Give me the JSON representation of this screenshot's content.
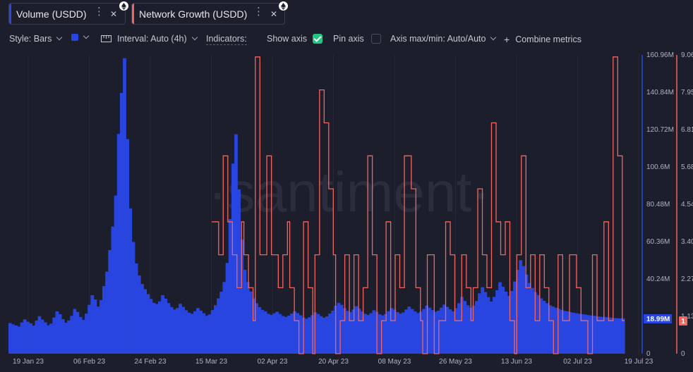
{
  "tabs": [
    {
      "label": "Volume (USDD)",
      "color": "#2846df"
    },
    {
      "label": "Network Growth (USDD)",
      "color": "#f2655e"
    }
  ],
  "toolbar": {
    "style": "Style: Bars",
    "interval": "Interval: Auto (4h)",
    "indicators": "Indicators:",
    "show_axis": "Show axis",
    "pin_axis": "Pin axis",
    "axis_maxmin": "Axis max/min: Auto/Auto",
    "combine": "Combine metrics"
  },
  "watermark": "·santiment·",
  "chart_data": {
    "type": "bar",
    "x_tick_labels": [
      "19 Jan 23",
      "06 Feb 23",
      "24 Feb 23",
      "15 Mar 23",
      "02 Apr 23",
      "20 Apr 23",
      "08 May 23",
      "26 May 23",
      "13 Jun 23",
      "02 Jul 23",
      "19 Jul 23"
    ],
    "y_left_ticks": [
      "160.96M",
      "140.84M",
      "120.72M",
      "100.6M",
      "80.48M",
      "60.36M",
      "40.24M",
      "0"
    ],
    "y_right_ticks": [
      "9.06",
      "7.95",
      "6.81",
      "5.68",
      "4.54",
      "3.40",
      "2.27",
      "1.13",
      "0"
    ],
    "y_left_range": [
      0,
      160960000
    ],
    "y_right_range": [
      0,
      9.06
    ],
    "last_values": {
      "volume": "18.99M",
      "network_growth": "1"
    },
    "series": [
      {
        "name": "Volume (USDD)",
        "color": "#2846df",
        "style": "bars",
        "axis": "left",
        "values_millions": [
          16.5,
          15.8,
          15.2,
          14.6,
          16.8,
          18.5,
          17.2,
          16.4,
          15.1,
          17.8,
          20.2,
          18.4,
          16.9,
          15.3,
          16.2,
          19.5,
          22.8,
          21.3,
          18.6,
          16.7,
          17.9,
          20.4,
          24.1,
          22.5,
          19.8,
          18.2,
          21.6,
          26.3,
          31.5,
          29.2,
          25.4,
          28.9,
          36.4,
          44.2,
          55.8,
          68.5,
          85.2,
          118.4,
          140.5,
          159.2,
          115.6,
          78.3,
          60.2,
          48.6,
          42.1,
          37.5,
          34.8,
          32.1,
          29.5,
          27.4,
          26.8,
          28.2,
          31.5,
          29.6,
          27.3,
          25.1,
          23.8,
          24.6,
          26.9,
          25.2,
          23.4,
          22.1,
          21.5,
          22.9,
          24.6,
          23.2,
          21.8,
          20.4,
          21.2,
          23.5,
          26.1,
          29.8,
          33.4,
          38.6,
          48.9,
          72.5,
          102.4,
          118.2,
          88.5,
          61.4,
          45.2,
          38.6,
          33.5,
          29.8,
          27.2,
          25.1,
          23.6,
          22.8,
          21.5,
          20.9,
          21.7,
          22.6,
          21.4,
          20.3,
          19.8,
          20.5,
          21.6,
          22.8,
          21.9,
          20.7,
          19.5,
          18.8,
          19.6,
          20.8,
          22.3,
          21.4,
          20.2,
          19.4,
          20.1,
          21.6,
          23.2,
          25.8,
          27.4,
          26.3,
          24.5,
          23.1,
          22.4,
          23.8,
          25.6,
          24.2,
          22.8,
          21.5,
          20.9,
          21.8,
          23.4,
          22.5,
          21.2,
          20.6,
          21.4,
          22.9,
          24.6,
          23.8,
          22.4,
          21.6,
          22.2,
          23.8,
          25.4,
          24.1,
          22.8,
          21.9,
          22.6,
          24.1,
          25.9,
          24.8,
          23.5,
          22.6,
          23.2,
          24.8,
          26.5,
          25.2,
          23.9,
          22.8,
          24.5,
          27.2,
          30.6,
          28.4,
          26.1,
          24.8,
          25.9,
          28.4,
          32.5,
          35.8,
          33.2,
          30.5,
          28.1,
          30.6,
          34.2,
          38.5,
          36.1,
          33.4,
          31.2,
          33.8,
          38.9,
          45.2,
          50.4,
          47.2,
          42.6,
          38.1,
          35.4,
          33.2,
          31.6,
          29.8,
          28.5,
          27.2,
          26.1,
          25.4,
          24.8,
          24.2,
          23.6,
          23.1,
          22.8,
          22.4,
          22.1,
          21.8,
          21.5,
          21.3,
          21.1,
          20.8,
          20.6,
          20.4,
          20.2,
          20.0,
          19.8,
          19.7,
          19.5,
          19.4,
          19.2,
          19.1,
          19.0,
          18.99
        ]
      },
      {
        "name": "Network Growth (USDD)",
        "color": "#f2655e",
        "style": "step-line",
        "axis": "right",
        "start_fraction": 0.33,
        "values": [
          4,
          4,
          4,
          3,
          3,
          6,
          6,
          4,
          4,
          3,
          3,
          2,
          2,
          4,
          3,
          3,
          2,
          2,
          1,
          9,
          9,
          3,
          3,
          3,
          6,
          6,
          3,
          3,
          3,
          2,
          2,
          3,
          3,
          4,
          2,
          2,
          1,
          1,
          0,
          0,
          4,
          4,
          2,
          2,
          0,
          3,
          3,
          8,
          8,
          7,
          7,
          5,
          5,
          3,
          0,
          0,
          1,
          1,
          3,
          3,
          1,
          1,
          3,
          3,
          1,
          1,
          2,
          2,
          6,
          6,
          3,
          3,
          0,
          0,
          1,
          1,
          4,
          4,
          1,
          1,
          3,
          3,
          2,
          2,
          6,
          6,
          6,
          5,
          5,
          2,
          2,
          1,
          0,
          0,
          3,
          3,
          3,
          0,
          0,
          1,
          1,
          1,
          4,
          4,
          3,
          3,
          1,
          1,
          1,
          3,
          3,
          2,
          2,
          1,
          2,
          2,
          5,
          5,
          3,
          3,
          2,
          2,
          7,
          7,
          4,
          4,
          3,
          3,
          4,
          4,
          1,
          1,
          0,
          3,
          3,
          6,
          6,
          2,
          2,
          3,
          3,
          1,
          1,
          3,
          3,
          2,
          2,
          1,
          1,
          0,
          0,
          3,
          3,
          1,
          1,
          1,
          3,
          3,
          3,
          2,
          2,
          1,
          1,
          1,
          0,
          0,
          3,
          3,
          1,
          1,
          1,
          4,
          4,
          1,
          1,
          9,
          9,
          6,
          6,
          1
        ]
      }
    ]
  }
}
